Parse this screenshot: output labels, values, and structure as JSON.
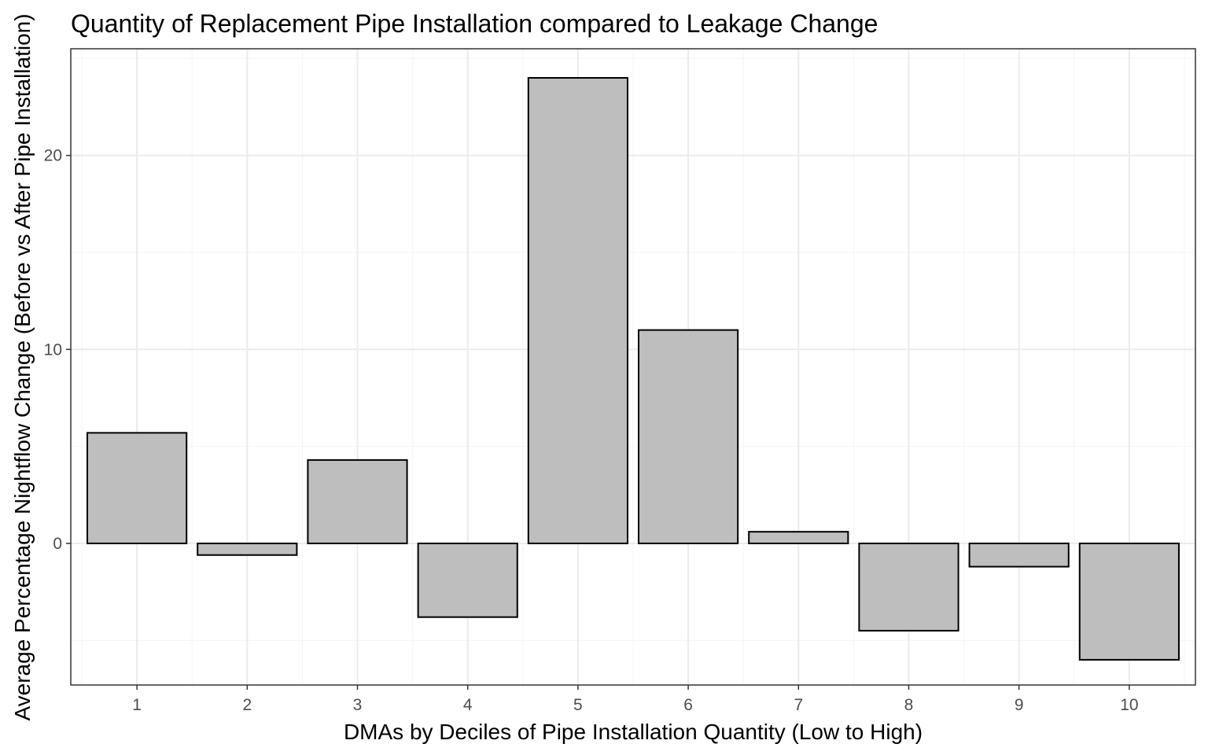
{
  "chart_data": {
    "type": "bar",
    "title": "Quantity of Replacement Pipe Installation compared to Leakage Change",
    "xlabel": "DMAs by Deciles of Pipe Installation Quantity (Low to High)",
    "ylabel": "Average Percentage Nightflow Change (Before vs After Pipe Installation)",
    "categories": [
      "1",
      "2",
      "3",
      "4",
      "5",
      "6",
      "7",
      "8",
      "9",
      "10"
    ],
    "values": [
      5.7,
      -0.6,
      4.3,
      -3.8,
      24.0,
      11.0,
      0.6,
      -4.5,
      -1.2,
      -6.0
    ],
    "ylim": [
      -7.3,
      25.5
    ],
    "yticks": [
      0,
      10,
      20
    ],
    "yticks_labels": [
      "0",
      "10",
      "20"
    ],
    "grid": true,
    "legend": "none",
    "colors": {
      "bar_fill": "#bebebe",
      "bar_stroke": "#000000",
      "grid_major": "#ebebeb",
      "grid_minor": "#f5f5f5",
      "panel_border": "#333333",
      "tick_label": "#4d4d4d"
    }
  }
}
